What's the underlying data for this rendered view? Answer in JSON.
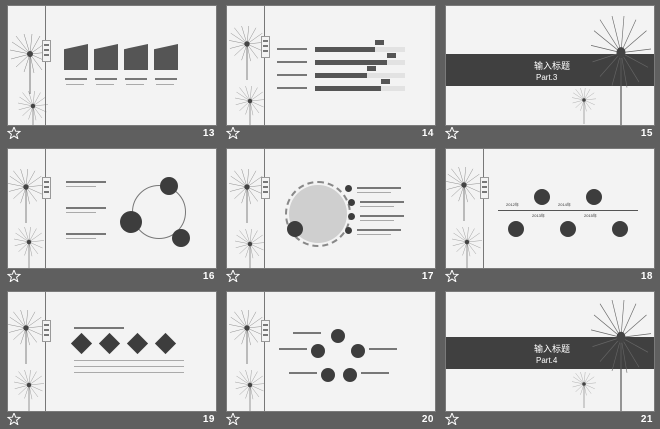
{
  "slides": [
    {
      "number": "13"
    },
    {
      "number": "14"
    },
    {
      "number": "15",
      "band_title": "输入标题",
      "band_sub": "Part.3"
    },
    {
      "number": "16"
    },
    {
      "number": "17"
    },
    {
      "number": "18",
      "years": [
        "2012年",
        "2013年",
        "2014年",
        "2015年"
      ]
    },
    {
      "number": "19"
    },
    {
      "number": "20"
    },
    {
      "number": "21",
      "band_title": "输入标题",
      "band_sub": "Part.4"
    }
  ]
}
